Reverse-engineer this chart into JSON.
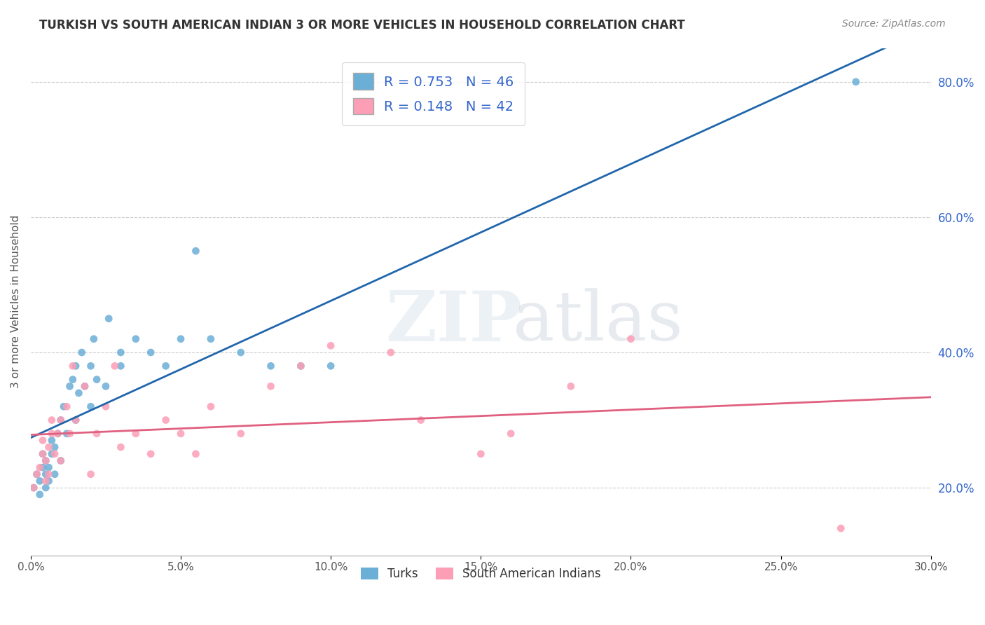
{
  "title": "TURKISH VS SOUTH AMERICAN INDIAN 3 OR MORE VEHICLES IN HOUSEHOLD CORRELATION CHART",
  "source": "Source: ZipAtlas.com",
  "ylabel": "3 or more Vehicles in Household",
  "xlabel_ticks": [
    "0.0%",
    "5.0%",
    "10.0%",
    "15.0%",
    "20.0%",
    "25.0%",
    "30.0%"
  ],
  "xlabel_vals": [
    0.0,
    5.0,
    10.0,
    15.0,
    20.0,
    25.0,
    30.0
  ],
  "ylabel_ticks": [
    "20.0%",
    "40.0%",
    "60.0%",
    "80.0%"
  ],
  "ylabel_vals": [
    20.0,
    40.0,
    60.0,
    80.0
  ],
  "blue_color": "#6baed6",
  "pink_color": "#fc9eb5",
  "blue_line_color": "#2166ac",
  "pink_line_color": "#e06080",
  "legend_text_color": "#3366cc",
  "r_turks": "0.753",
  "n_turks": "46",
  "r_sai": "0.148",
  "n_sai": "42",
  "turks_x": [
    0.1,
    0.2,
    0.3,
    0.3,
    0.4,
    0.4,
    0.5,
    0.5,
    0.5,
    0.6,
    0.6,
    0.7,
    0.7,
    0.8,
    0.8,
    0.9,
    1.0,
    1.0,
    1.1,
    1.2,
    1.3,
    1.4,
    1.5,
    1.5,
    1.6,
    1.7,
    1.8,
    2.0,
    2.0,
    2.1,
    2.2,
    2.5,
    2.6,
    3.0,
    3.0,
    3.5,
    4.0,
    4.5,
    5.0,
    5.5,
    6.0,
    7.0,
    8.0,
    9.0,
    10.0,
    27.5
  ],
  "turks_y": [
    20.0,
    22.0,
    19.0,
    21.0,
    23.0,
    25.0,
    20.0,
    22.0,
    24.0,
    21.0,
    23.0,
    25.0,
    27.0,
    22.0,
    26.0,
    28.0,
    24.0,
    30.0,
    32.0,
    28.0,
    35.0,
    36.0,
    30.0,
    38.0,
    34.0,
    40.0,
    35.0,
    32.0,
    38.0,
    42.0,
    36.0,
    35.0,
    45.0,
    38.0,
    40.0,
    42.0,
    40.0,
    38.0,
    42.0,
    55.0,
    42.0,
    40.0,
    38.0,
    38.0,
    38.0,
    80.0
  ],
  "sai_x": [
    0.1,
    0.2,
    0.3,
    0.4,
    0.4,
    0.5,
    0.5,
    0.6,
    0.6,
    0.7,
    0.7,
    0.8,
    0.9,
    1.0,
    1.0,
    1.2,
    1.3,
    1.4,
    1.5,
    1.8,
    2.0,
    2.2,
    2.5,
    2.8,
    3.0,
    3.5,
    4.0,
    4.5,
    5.0,
    5.5,
    6.0,
    7.0,
    8.0,
    9.0,
    10.0,
    12.0,
    13.0,
    15.0,
    16.0,
    18.0,
    20.0,
    27.0
  ],
  "sai_y": [
    20.0,
    22.0,
    23.0,
    25.0,
    27.0,
    21.0,
    24.0,
    22.0,
    26.0,
    28.0,
    30.0,
    25.0,
    28.0,
    24.0,
    30.0,
    32.0,
    28.0,
    38.0,
    30.0,
    35.0,
    22.0,
    28.0,
    32.0,
    38.0,
    26.0,
    28.0,
    25.0,
    30.0,
    28.0,
    25.0,
    32.0,
    28.0,
    35.0,
    38.0,
    41.0,
    40.0,
    30.0,
    25.0,
    28.0,
    35.0,
    42.0,
    14.0
  ]
}
